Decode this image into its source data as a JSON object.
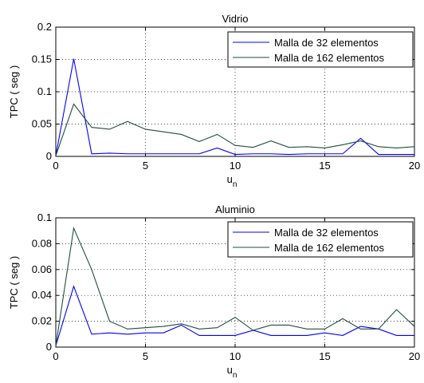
{
  "chart_data": [
    {
      "type": "line",
      "title": "Vidrio",
      "xlabel": "u",
      "xlabel_sub": "n",
      "ylabel": "TPC ( seg )",
      "xlim": [
        0,
        20
      ],
      "ylim": [
        0,
        0.2
      ],
      "xticks": [
        0,
        5,
        10,
        15,
        20
      ],
      "yticks": [
        0,
        0.05,
        0.1,
        0.15,
        0.2
      ],
      "ytick_labels": [
        "0",
        "0.05",
        "0.1",
        "0.15",
        "0.2"
      ],
      "grid": true,
      "legend": "top-right",
      "x": [
        0,
        1,
        2,
        3,
        4,
        5,
        6,
        7,
        8,
        9,
        10,
        11,
        12,
        13,
        14,
        15,
        16,
        17,
        18,
        19,
        20
      ],
      "series": [
        {
          "name": "Malla de 32 elementos",
          "color": "#0000ff",
          "values": [
            0.001,
            0.151,
            0.004,
            0.005,
            0.004,
            0.004,
            0.004,
            0.004,
            0.004,
            0.013,
            0.003,
            0.004,
            0.004,
            0.003,
            0.004,
            0.004,
            0.004,
            0.028,
            0.003,
            0.003,
            0.003
          ]
        },
        {
          "name": "Malla de 162 elementos",
          "color": "#1f4e3d",
          "values": [
            0.001,
            0.081,
            0.045,
            0.042,
            0.054,
            0.042,
            0.038,
            0.034,
            0.023,
            0.034,
            0.017,
            0.014,
            0.024,
            0.014,
            0.015,
            0.013,
            0.018,
            0.024,
            0.015,
            0.013,
            0.015
          ]
        }
      ]
    },
    {
      "type": "line",
      "title": "Aluminio",
      "xlabel": "u",
      "xlabel_sub": "n",
      "ylabel": "TPC ( seg )",
      "xlim": [
        0,
        20
      ],
      "ylim": [
        0,
        0.1
      ],
      "xticks": [
        0,
        5,
        10,
        15,
        20
      ],
      "yticks": [
        0,
        0.02,
        0.04,
        0.06,
        0.08,
        0.1
      ],
      "ytick_labels": [
        "0",
        "0.02",
        "0.04",
        "0.06",
        "0.08",
        "0.1"
      ],
      "grid": true,
      "legend": "top-right",
      "x": [
        0,
        1,
        2,
        3,
        4,
        5,
        6,
        7,
        8,
        9,
        10,
        11,
        12,
        13,
        14,
        15,
        16,
        17,
        18,
        19,
        20
      ],
      "series": [
        {
          "name": "Malla de 32 elementos",
          "color": "#0000ff",
          "values": [
            0.001,
            0.047,
            0.01,
            0.011,
            0.01,
            0.011,
            0.011,
            0.017,
            0.009,
            0.009,
            0.009,
            0.013,
            0.009,
            0.009,
            0.009,
            0.011,
            0.009,
            0.016,
            0.014,
            0.009,
            0.009
          ]
        },
        {
          "name": "Malla de 162 elementos",
          "color": "#1f4e3d",
          "values": [
            0.001,
            0.092,
            0.06,
            0.02,
            0.014,
            0.015,
            0.016,
            0.018,
            0.014,
            0.015,
            0.023,
            0.013,
            0.017,
            0.017,
            0.014,
            0.014,
            0.022,
            0.014,
            0.014,
            0.029,
            0.016
          ]
        }
      ]
    }
  ]
}
